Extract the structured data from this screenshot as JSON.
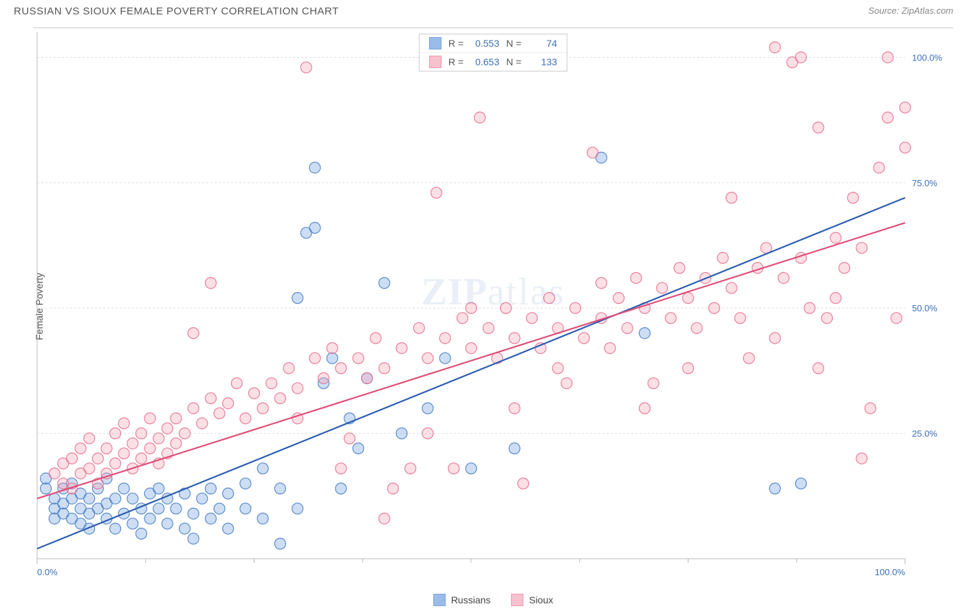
{
  "header": {
    "title": "RUSSIAN VS SIOUX FEMALE POVERTY CORRELATION CHART",
    "source": "Source: ZipAtlas.com"
  },
  "chart": {
    "type": "scatter",
    "ylabel": "Female Poverty",
    "watermark_primary": "ZIP",
    "watermark_secondary": "atlas",
    "background_color": "#ffffff",
    "grid_color": "#dddddd",
    "axis_color": "#bbbbbb",
    "label_color": "#3b6fb6",
    "xlim": [
      0,
      100
    ],
    "ylim": [
      0,
      105
    ],
    "x_ticks": [
      0,
      100
    ],
    "x_tick_labels": [
      "0.0%",
      "100.0%"
    ],
    "x_minor_ticks": [
      12.5,
      25,
      37.5,
      50,
      62.5,
      75,
      87.5
    ],
    "y_ticks": [
      25,
      50,
      75,
      100
    ],
    "y_tick_labels": [
      "25.0%",
      "50.0%",
      "75.0%",
      "100.0%"
    ],
    "marker_radius": 8,
    "marker_fill_opacity": 0.35,
    "marker_stroke_opacity": 0.9,
    "marker_stroke_width": 1.2,
    "trend_line_width": 2.2,
    "series": [
      {
        "key": "russians",
        "label": "Russians",
        "color": "#6fa0e0",
        "stroke": "#4a7fc9",
        "line_color": "#2a5db0",
        "R": "0.553",
        "N": "74",
        "trend": {
          "x1": 0,
          "y1": 2,
          "x2": 100,
          "y2": 72
        },
        "points": [
          [
            1,
            14
          ],
          [
            1,
            16
          ],
          [
            2,
            12
          ],
          [
            2,
            10
          ],
          [
            2,
            8
          ],
          [
            3,
            14
          ],
          [
            3,
            11
          ],
          [
            3,
            9
          ],
          [
            4,
            12
          ],
          [
            4,
            8
          ],
          [
            4,
            15
          ],
          [
            5,
            10
          ],
          [
            5,
            7
          ],
          [
            5,
            13
          ],
          [
            6,
            9
          ],
          [
            6,
            12
          ],
          [
            6,
            6
          ],
          [
            7,
            10
          ],
          [
            7,
            14
          ],
          [
            8,
            8
          ],
          [
            8,
            11
          ],
          [
            8,
            16
          ],
          [
            9,
            6
          ],
          [
            9,
            12
          ],
          [
            10,
            9
          ],
          [
            10,
            14
          ],
          [
            11,
            7
          ],
          [
            11,
            12
          ],
          [
            12,
            10
          ],
          [
            12,
            5
          ],
          [
            13,
            13
          ],
          [
            13,
            8
          ],
          [
            14,
            10
          ],
          [
            14,
            14
          ],
          [
            15,
            7
          ],
          [
            15,
            12
          ],
          [
            16,
            10
          ],
          [
            17,
            6
          ],
          [
            17,
            13
          ],
          [
            18,
            9
          ],
          [
            18,
            4
          ],
          [
            19,
            12
          ],
          [
            20,
            8
          ],
          [
            20,
            14
          ],
          [
            21,
            10
          ],
          [
            22,
            6
          ],
          [
            22,
            13
          ],
          [
            24,
            10
          ],
          [
            24,
            15
          ],
          [
            26,
            8
          ],
          [
            26,
            18
          ],
          [
            28,
            14
          ],
          [
            28,
            3
          ],
          [
            30,
            10
          ],
          [
            30,
            52
          ],
          [
            31,
            65
          ],
          [
            32,
            66
          ],
          [
            32,
            78
          ],
          [
            33,
            35
          ],
          [
            34,
            40
          ],
          [
            35,
            14
          ],
          [
            36,
            28
          ],
          [
            37,
            22
          ],
          [
            38,
            36
          ],
          [
            40,
            55
          ],
          [
            42,
            25
          ],
          [
            45,
            30
          ],
          [
            47,
            40
          ],
          [
            50,
            18
          ],
          [
            55,
            22
          ],
          [
            65,
            80
          ],
          [
            70,
            45
          ],
          [
            85,
            14
          ],
          [
            88,
            15
          ]
        ]
      },
      {
        "key": "sioux",
        "label": "Sioux",
        "color": "#f5a7b8",
        "stroke": "#e8718f",
        "line_color": "#e04d77",
        "R": "0.653",
        "N": "133",
        "trend": {
          "x1": 0,
          "y1": 12,
          "x2": 100,
          "y2": 67
        },
        "points": [
          [
            2,
            17
          ],
          [
            3,
            15
          ],
          [
            3,
            19
          ],
          [
            4,
            14
          ],
          [
            4,
            20
          ],
          [
            5,
            17
          ],
          [
            5,
            22
          ],
          [
            6,
            18
          ],
          [
            6,
            24
          ],
          [
            7,
            20
          ],
          [
            7,
            15
          ],
          [
            8,
            22
          ],
          [
            8,
            17
          ],
          [
            9,
            19
          ],
          [
            9,
            25
          ],
          [
            10,
            21
          ],
          [
            10,
            27
          ],
          [
            11,
            23
          ],
          [
            11,
            18
          ],
          [
            12,
            25
          ],
          [
            12,
            20
          ],
          [
            13,
            22
          ],
          [
            13,
            28
          ],
          [
            14,
            24
          ],
          [
            14,
            19
          ],
          [
            15,
            26
          ],
          [
            15,
            21
          ],
          [
            16,
            28
          ],
          [
            16,
            23
          ],
          [
            17,
            25
          ],
          [
            18,
            45
          ],
          [
            18,
            30
          ],
          [
            19,
            27
          ],
          [
            20,
            55
          ],
          [
            20,
            32
          ],
          [
            21,
            29
          ],
          [
            22,
            31
          ],
          [
            23,
            35
          ],
          [
            24,
            28
          ],
          [
            25,
            33
          ],
          [
            26,
            30
          ],
          [
            27,
            35
          ],
          [
            28,
            32
          ],
          [
            29,
            38
          ],
          [
            30,
            34
          ],
          [
            31,
            98
          ],
          [
            32,
            40
          ],
          [
            33,
            36
          ],
          [
            34,
            42
          ],
          [
            35,
            38
          ],
          [
            36,
            24
          ],
          [
            37,
            40
          ],
          [
            38,
            36
          ],
          [
            39,
            44
          ],
          [
            40,
            38
          ],
          [
            41,
            14
          ],
          [
            42,
            42
          ],
          [
            43,
            18
          ],
          [
            44,
            46
          ],
          [
            45,
            40
          ],
          [
            46,
            73
          ],
          [
            47,
            44
          ],
          [
            48,
            18
          ],
          [
            49,
            48
          ],
          [
            50,
            42
          ],
          [
            51,
            88
          ],
          [
            52,
            46
          ],
          [
            53,
            40
          ],
          [
            54,
            50
          ],
          [
            55,
            44
          ],
          [
            56,
            15
          ],
          [
            57,
            48
          ],
          [
            58,
            42
          ],
          [
            59,
            52
          ],
          [
            60,
            46
          ],
          [
            61,
            35
          ],
          [
            62,
            50
          ],
          [
            63,
            44
          ],
          [
            64,
            81
          ],
          [
            65,
            48
          ],
          [
            66,
            42
          ],
          [
            67,
            52
          ],
          [
            68,
            46
          ],
          [
            69,
            56
          ],
          [
            70,
            50
          ],
          [
            71,
            35
          ],
          [
            72,
            54
          ],
          [
            73,
            48
          ],
          [
            74,
            58
          ],
          [
            75,
            52
          ],
          [
            76,
            46
          ],
          [
            77,
            56
          ],
          [
            78,
            50
          ],
          [
            79,
            60
          ],
          [
            80,
            54
          ],
          [
            81,
            48
          ],
          [
            82,
            40
          ],
          [
            83,
            58
          ],
          [
            84,
            62
          ],
          [
            85,
            102
          ],
          [
            86,
            56
          ],
          [
            87,
            99
          ],
          [
            88,
            60
          ],
          [
            89,
            50
          ],
          [
            90,
            86
          ],
          [
            91,
            48
          ],
          [
            92,
            64
          ],
          [
            93,
            58
          ],
          [
            94,
            72
          ],
          [
            95,
            62
          ],
          [
            96,
            30
          ],
          [
            97,
            78
          ],
          [
            98,
            88
          ],
          [
            99,
            48
          ],
          [
            100,
            82
          ],
          [
            100,
            90
          ],
          [
            95,
            20
          ],
          [
            90,
            38
          ],
          [
            85,
            44
          ],
          [
            80,
            72
          ],
          [
            75,
            38
          ],
          [
            70,
            30
          ],
          [
            65,
            55
          ],
          [
            60,
            38
          ],
          [
            55,
            30
          ],
          [
            50,
            50
          ],
          [
            45,
            25
          ],
          [
            40,
            8
          ],
          [
            35,
            18
          ],
          [
            30,
            28
          ],
          [
            88,
            100
          ],
          [
            92,
            52
          ],
          [
            98,
            100
          ]
        ]
      }
    ],
    "legend_bottom": [
      {
        "key": "russians",
        "label": "Russians"
      },
      {
        "key": "sioux",
        "label": "Sioux"
      }
    ]
  }
}
